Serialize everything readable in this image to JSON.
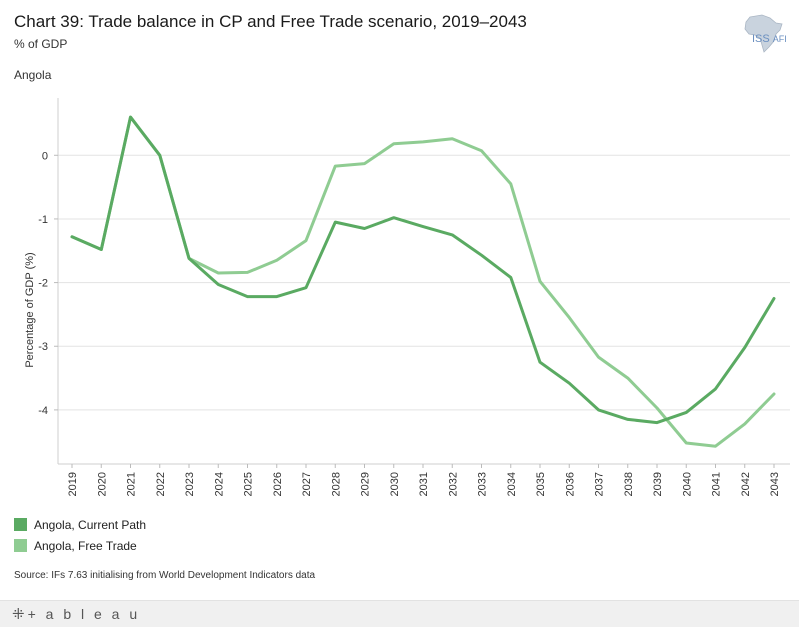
{
  "header": {
    "title": "Chart 39: Trade balance in CP and Free Trade scenario, 2019–2043",
    "subtitle": "% of GDP",
    "country": "Angola"
  },
  "logo": {
    "text": "ISS",
    "suffix": "AFI",
    "icon": "africa-map-icon"
  },
  "chart_data": {
    "type": "line",
    "title": "Chart 39: Trade balance in CP and Free Trade scenario, 2019–2043",
    "xlabel": "",
    "ylabel": "Percentage of GDP (%)",
    "ylim": [
      -4.85,
      0.9
    ],
    "yticks": [
      0,
      -1,
      -2,
      -3,
      -4
    ],
    "ytick_labels": [
      "0",
      "-1",
      "-2",
      "-3",
      "-4"
    ],
    "grid": true,
    "categories": [
      "2019",
      "2020",
      "2021",
      "2022",
      "2023",
      "2024",
      "2025",
      "2026",
      "2027",
      "2028",
      "2029",
      "2030",
      "2031",
      "2032",
      "2033",
      "2034",
      "2035",
      "2036",
      "2037",
      "2038",
      "2039",
      "2040",
      "2041",
      "2042",
      "2043"
    ],
    "series": [
      {
        "name": "Angola,  Current Path",
        "color": "#5aaa62",
        "values": [
          -1.28,
          -1.48,
          0.6,
          0.0,
          -1.62,
          -2.03,
          -2.22,
          -2.22,
          -2.08,
          -1.05,
          -1.15,
          -0.98,
          -1.12,
          -1.25,
          -1.57,
          -1.92,
          -3.25,
          -3.58,
          -4.0,
          -4.15,
          -4.2,
          -4.04,
          -3.67,
          -3.02,
          -2.25
        ]
      },
      {
        "name": "Angola,  Free Trade",
        "color": "#8fcc92",
        "values": [
          -1.28,
          -1.48,
          0.6,
          0.0,
          -1.62,
          -1.85,
          -1.84,
          -1.65,
          -1.34,
          -0.17,
          -0.13,
          0.18,
          0.21,
          0.26,
          0.07,
          -0.45,
          -1.98,
          -2.55,
          -3.17,
          -3.5,
          -3.97,
          -4.52,
          -4.57,
          -4.22,
          -3.75
        ]
      }
    ]
  },
  "legend": {
    "items": [
      {
        "label": "Angola,  Current Path",
        "color": "#5aaa62"
      },
      {
        "label": "Angola,  Free Trade",
        "color": "#8fcc92"
      }
    ]
  },
  "source": "Source: IFs 7.63 initialising from World Development Indicators data",
  "footer": {
    "brand": "+ a b l e a u"
  }
}
